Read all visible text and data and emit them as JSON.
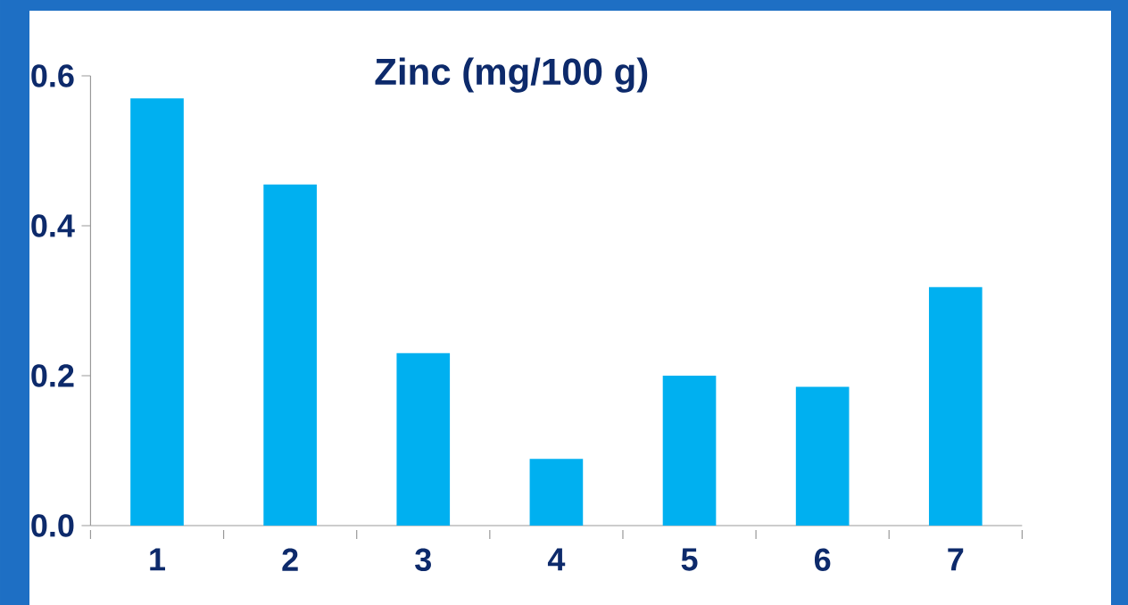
{
  "chart_data": {
    "type": "bar",
    "title": "Zinc (mg/100 g)",
    "categories": [
      "1",
      "2",
      "3",
      "4",
      "5",
      "6",
      "7"
    ],
    "values": [
      0.57,
      0.455,
      0.23,
      0.089,
      0.2,
      0.185,
      0.318
    ],
    "color": "#00b0f0",
    "ylim": [
      0,
      0.6
    ],
    "yticks": [
      {
        "value": 0,
        "label": "0.0"
      },
      {
        "value": 0.2,
        "label": "0.2"
      },
      {
        "value": 0.4,
        "label": "0.4"
      },
      {
        "value": 0.6,
        "label": "0.6"
      }
    ],
    "grid": false
  }
}
